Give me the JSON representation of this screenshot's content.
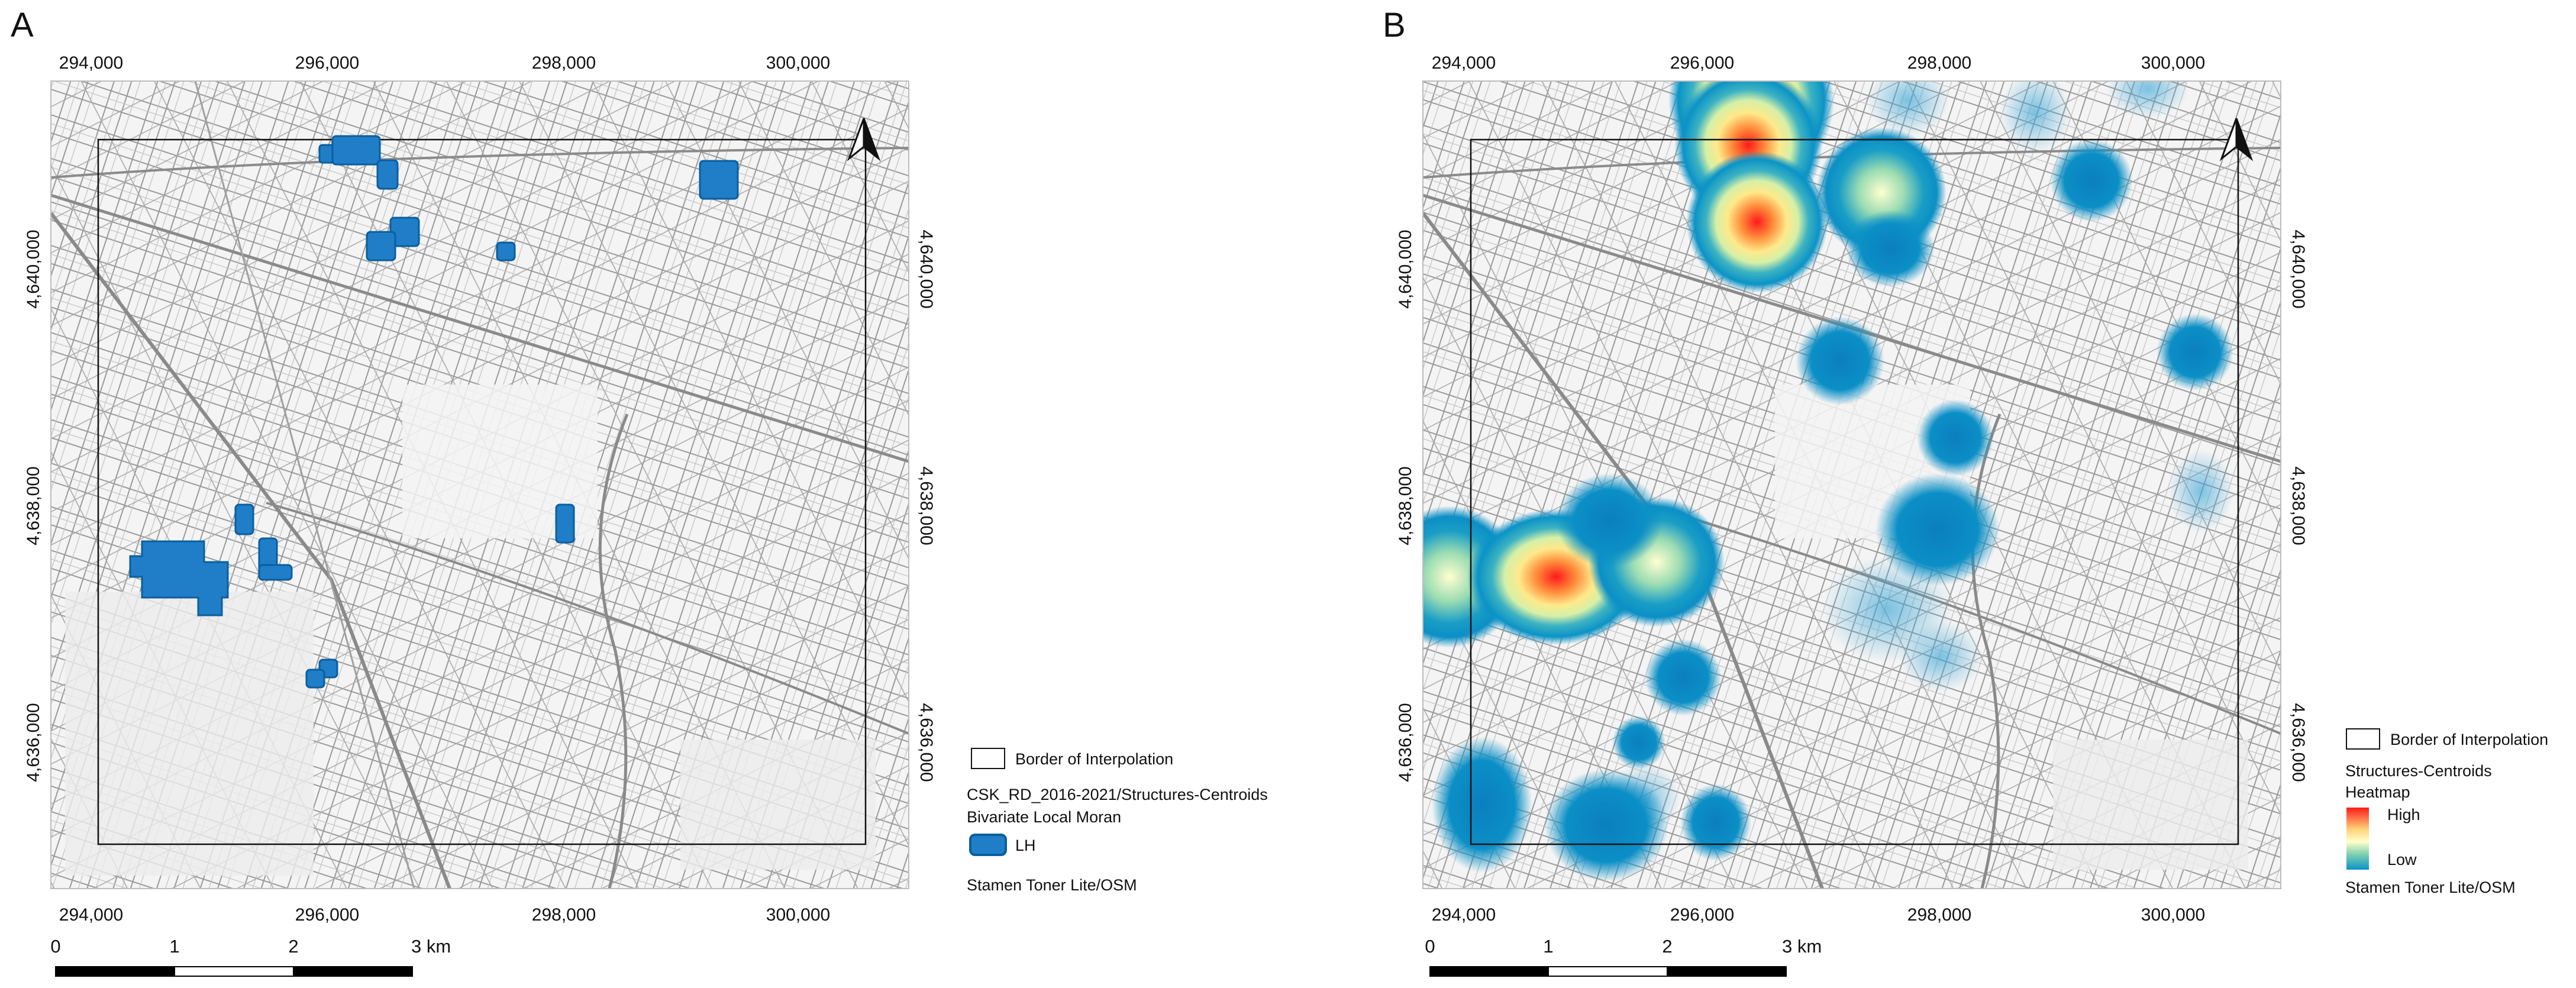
{
  "panels": [
    {
      "letter": "A",
      "x_ticks": [
        "294,000",
        "296,000",
        "298,000",
        "300,000"
      ],
      "y_ticks": [
        "4,640,000",
        "4,638,000",
        "4,636,000"
      ],
      "legend": {
        "border_label": "Border of Interpolation",
        "layer_title": "CSK_RD_2016-2021/Structures-Centroids",
        "layer_subtitle": "Bivariate Local Moran",
        "class_label": "LH",
        "class_color": "#1f7ec7",
        "basemap_label": "Stamen Toner Lite/OSM"
      },
      "scale_labels": [
        "0",
        "1",
        "2",
        "3 km"
      ]
    },
    {
      "letter": "B",
      "x_ticks": [
        "294,000",
        "296,000",
        "298,000",
        "300,000"
      ],
      "y_ticks": [
        "4,640,000",
        "4,638,000",
        "4,636,000"
      ],
      "legend": {
        "border_label": "Border of Interpolation",
        "layer_title": "Structures-Centroids",
        "layer_subtitle": "Heatmap",
        "high_label": "High",
        "low_label": "Low",
        "ramp_colors": [
          "#ff1a1a",
          "#ffd27a",
          "#ffffcc",
          "#7fd0b0",
          "#0b93c7"
        ],
        "basemap_label": "Stamen Toner Lite/OSM"
      },
      "scale_labels": [
        "0",
        "1",
        "2",
        "3 km"
      ]
    }
  ],
  "north_arrow": "north-arrow-icon"
}
